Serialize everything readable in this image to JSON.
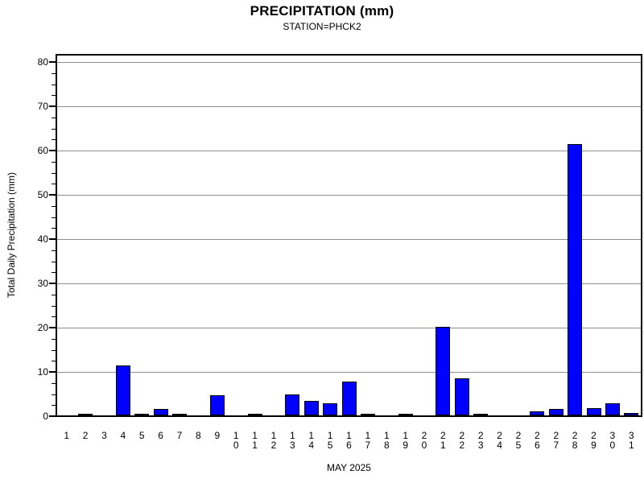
{
  "title": "PRECIPITATION (mm)",
  "subtitle": "STATION=PHCK2",
  "chart_data": {
    "type": "bar",
    "title": "PRECIPITATION (mm)",
    "subtitle": "STATION=PHCK2",
    "xlabel": "MAY 2025",
    "ylabel": "Total Daily Precipitation (mm)",
    "ylim": [
      0,
      80
    ],
    "y_major_ticks": [
      0,
      10,
      20,
      30,
      40,
      50,
      60,
      70,
      80
    ],
    "y_minor_tick_interval": 2.5,
    "grid": "horizontal-major-gray",
    "legend": "none",
    "bar_color": "#0000ff",
    "bar_border_color": "#000000",
    "gridline_color": "#909090",
    "background_color": "#ffffff",
    "categories": [
      "1",
      "2",
      "3",
      "4",
      "5",
      "6",
      "7",
      "8",
      "9",
      "10",
      "11",
      "12",
      "13",
      "14",
      "15",
      "16",
      "17",
      "18",
      "19",
      "20",
      "21",
      "22",
      "23",
      "24",
      "25",
      "26",
      "27",
      "28",
      "29",
      "30",
      "31"
    ],
    "values": [
      0,
      0.3,
      0,
      11.3,
      0.3,
      1.4,
      0.2,
      0,
      4.5,
      0,
      0.2,
      0,
      4.8,
      3.3,
      2.8,
      7.6,
      0.3,
      0,
      0.3,
      0,
      20,
      8.4,
      0.2,
      0,
      0,
      1.0,
      1.5,
      61.2,
      1.6,
      2.7,
      0.5
    ]
  }
}
